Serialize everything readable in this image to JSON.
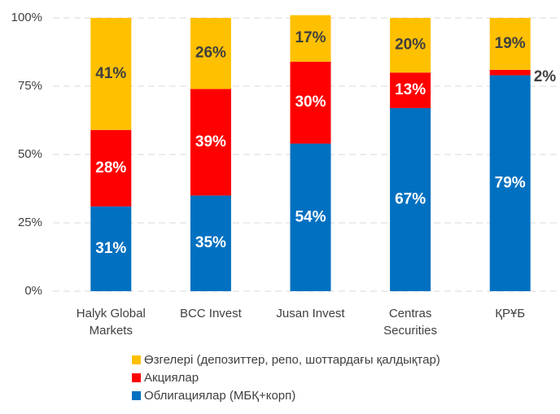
{
  "chart_data": {
    "type": "stacked_bar",
    "categories": [
      "Halyk Global\nMarkets",
      "BCC Invest",
      "Jusan Invest",
      "Centras\nSecurities",
      "ҚРҰБ"
    ],
    "series": [
      {
        "name": "Облигациялар (МБҚ+корп)",
        "color": "#0070c0",
        "values": [
          31,
          35,
          54,
          67,
          79
        ],
        "value_labels": [
          "31%",
          "35%",
          "54%",
          "67%",
          "79%"
        ]
      },
      {
        "name": "Акциялар",
        "color": "#ff0000",
        "values": [
          28,
          39,
          30,
          13,
          2
        ],
        "value_labels": [
          "28%",
          "39%",
          "30%",
          "13%",
          "2%"
        ]
      },
      {
        "name": "Өзгелері (депозиттер, репо, шоттардағы қалдықтар)",
        "color": "#ffc000",
        "values": [
          41,
          26,
          17,
          20,
          19
        ],
        "value_labels": [
          "41%",
          "26%",
          "17%",
          "20%",
          "19%"
        ]
      }
    ],
    "ylim": [
      0,
      100
    ],
    "yticks": [
      {
        "value": 0,
        "label": "0%"
      },
      {
        "value": 25,
        "label": "25%"
      },
      {
        "value": 50,
        "label": "50%"
      },
      {
        "value": 75,
        "label": "75%"
      },
      {
        "value": 100,
        "label": "100%"
      }
    ],
    "grid": true,
    "legend": "bottom"
  }
}
